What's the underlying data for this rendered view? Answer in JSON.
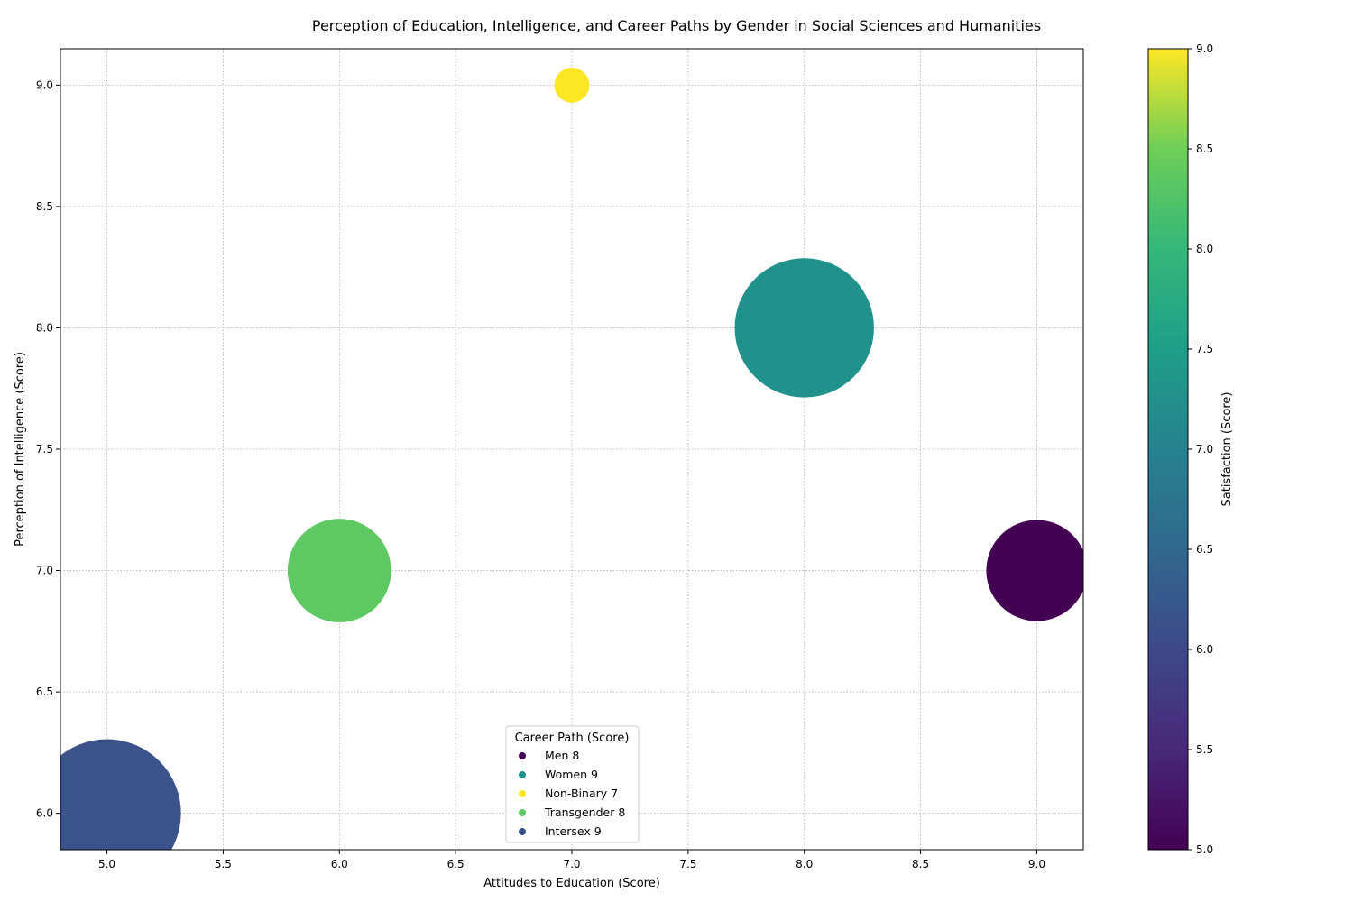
{
  "chart_data": {
    "type": "scatter",
    "title": "Perception of Education, Intelligence, and Career Paths by Gender in Social Sciences and Humanities",
    "xlabel": "Attitudes to Education (Score)",
    "ylabel": "Perception of Intelligence (Score)",
    "xlim": [
      4.8,
      9.2
    ],
    "ylim": [
      5.85,
      9.15
    ],
    "xticks": [
      "5.0",
      "5.5",
      "6.0",
      "6.5",
      "7.0",
      "7.5",
      "8.0",
      "8.5",
      "9.0"
    ],
    "yticks": [
      "6.0",
      "6.5",
      "7.0",
      "7.5",
      "8.0",
      "8.5",
      "9.0"
    ],
    "grid": true,
    "legend": {
      "title": "Career Path (Score)",
      "placement": "lower center"
    },
    "colorbar": {
      "label": "Satisfaction (Score)",
      "range": [
        5,
        9
      ],
      "ticks": [
        "5.0",
        "5.5",
        "6.0",
        "6.5",
        "7.0",
        "7.5",
        "8.0",
        "8.5",
        "9.0"
      ],
      "colormap": "viridis"
    },
    "series": [
      {
        "name": "Men 8",
        "x": 9,
        "y": 7,
        "satisfaction": 5,
        "color": "#440154",
        "size": 1.0
      },
      {
        "name": "Women 9",
        "x": 8,
        "y": 8,
        "satisfaction": 7,
        "color": "#21918c",
        "size": 1.9
      },
      {
        "name": "Non-Binary 7",
        "x": 7,
        "y": 9,
        "satisfaction": 9,
        "color": "#fde725",
        "size": 0.12
      },
      {
        "name": "Transgender 8",
        "x": 6,
        "y": 7,
        "satisfaction": 8,
        "color": "#5ec962",
        "size": 1.05
      },
      {
        "name": "Intersex 9",
        "x": 5,
        "y": 6,
        "satisfaction": 6,
        "color": "#3b528b",
        "size": 2.15
      }
    ]
  }
}
